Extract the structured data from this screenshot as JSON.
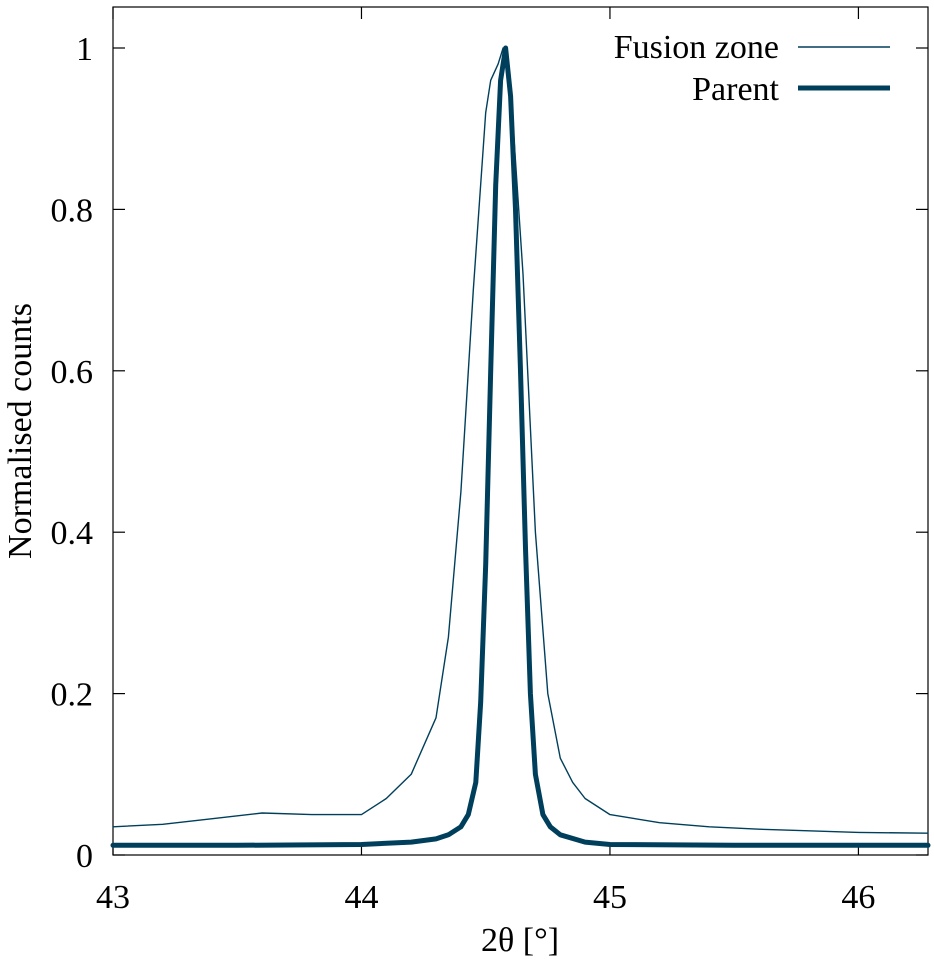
{
  "chart_data": {
    "type": "line",
    "title": "",
    "xlabel": "2θ [°]",
    "ylabel": "Normalised counts",
    "xlim": [
      43.0,
      46.28
    ],
    "ylim": [
      0,
      1.05
    ],
    "x_ticks": [
      43,
      44,
      45,
      46
    ],
    "x_tick_labels": [
      "43",
      "44",
      "45",
      "46"
    ],
    "y_ticks": [
      0,
      0.2,
      0.4,
      0.6,
      0.8,
      1.0
    ],
    "y_tick_labels": [
      "0",
      "0.2",
      "0.4",
      "0.6",
      "0.8",
      "1"
    ],
    "grid": false,
    "legend_position": "top-right",
    "series": [
      {
        "name": "Fusion zone",
        "color": "#003f5c",
        "style": "thin",
        "x": [
          43.0,
          43.2,
          43.4,
          43.6,
          43.8,
          44.0,
          44.1,
          44.2,
          44.3,
          44.35,
          44.4,
          44.45,
          44.5,
          44.52,
          44.55,
          44.57,
          44.6,
          44.62,
          44.65,
          44.7,
          44.75,
          44.8,
          44.85,
          44.9,
          45.0,
          45.2,
          45.4,
          45.6,
          45.8,
          46.0,
          46.28
        ],
        "values": [
          0.035,
          0.038,
          0.045,
          0.052,
          0.05,
          0.05,
          0.07,
          0.1,
          0.17,
          0.27,
          0.45,
          0.7,
          0.92,
          0.96,
          0.98,
          1.0,
          0.95,
          0.86,
          0.72,
          0.4,
          0.2,
          0.12,
          0.09,
          0.07,
          0.05,
          0.04,
          0.035,
          0.032,
          0.03,
          0.028,
          0.027
        ]
      },
      {
        "name": "Parent",
        "color": "#003f5c",
        "style": "thick",
        "x": [
          43.0,
          43.5,
          44.0,
          44.2,
          44.3,
          44.35,
          44.4,
          44.43,
          44.46,
          44.48,
          44.5,
          44.52,
          44.54,
          44.56,
          44.58,
          44.6,
          44.62,
          44.64,
          44.66,
          44.68,
          44.7,
          44.73,
          44.76,
          44.8,
          44.9,
          45.0,
          45.5,
          46.0,
          46.28
        ],
        "values": [
          0.012,
          0.012,
          0.013,
          0.016,
          0.02,
          0.025,
          0.035,
          0.05,
          0.09,
          0.19,
          0.36,
          0.6,
          0.83,
          0.96,
          1.0,
          0.94,
          0.8,
          0.6,
          0.38,
          0.2,
          0.1,
          0.05,
          0.035,
          0.025,
          0.016,
          0.013,
          0.012,
          0.012,
          0.012
        ]
      }
    ]
  }
}
